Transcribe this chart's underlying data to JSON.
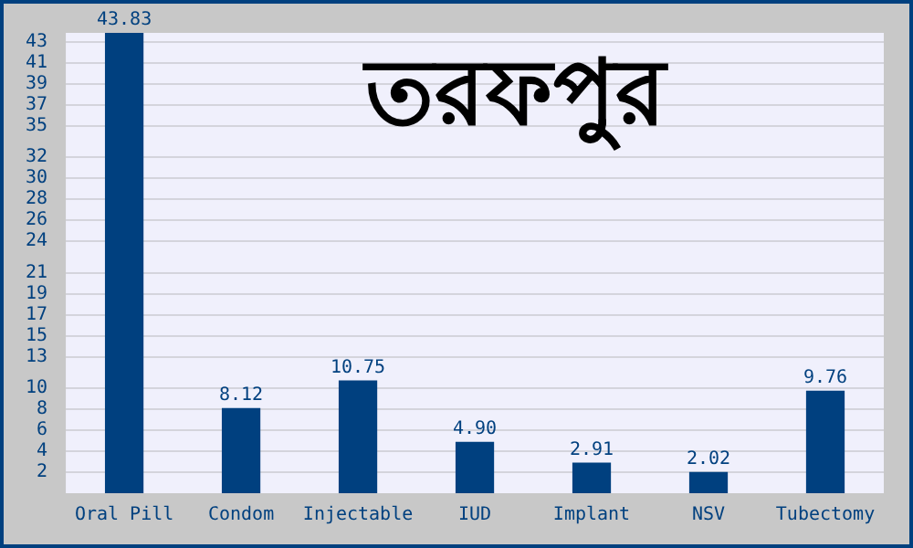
{
  "chart_data": {
    "type": "bar",
    "title": "তরফপুর",
    "categories": [
      "Oral Pill",
      "Condom",
      "Injectable",
      "IUD",
      "Implant",
      "NSV",
      "Tubectomy"
    ],
    "values": [
      43.83,
      8.12,
      10.75,
      4.9,
      2.91,
      2.02,
      9.76
    ],
    "value_labels": [
      "43.83",
      "8.12",
      "10.75",
      "4.90",
      "2.91",
      "2.02",
      "9.76"
    ],
    "color": "#00407f",
    "ylim": [
      0,
      43.83
    ],
    "yticks": [
      2,
      4,
      6,
      8,
      10,
      13,
      15,
      17,
      19,
      21,
      24,
      26,
      28,
      30,
      32,
      35,
      37,
      39,
      41,
      43
    ],
    "grid": "y",
    "legend": false
  }
}
